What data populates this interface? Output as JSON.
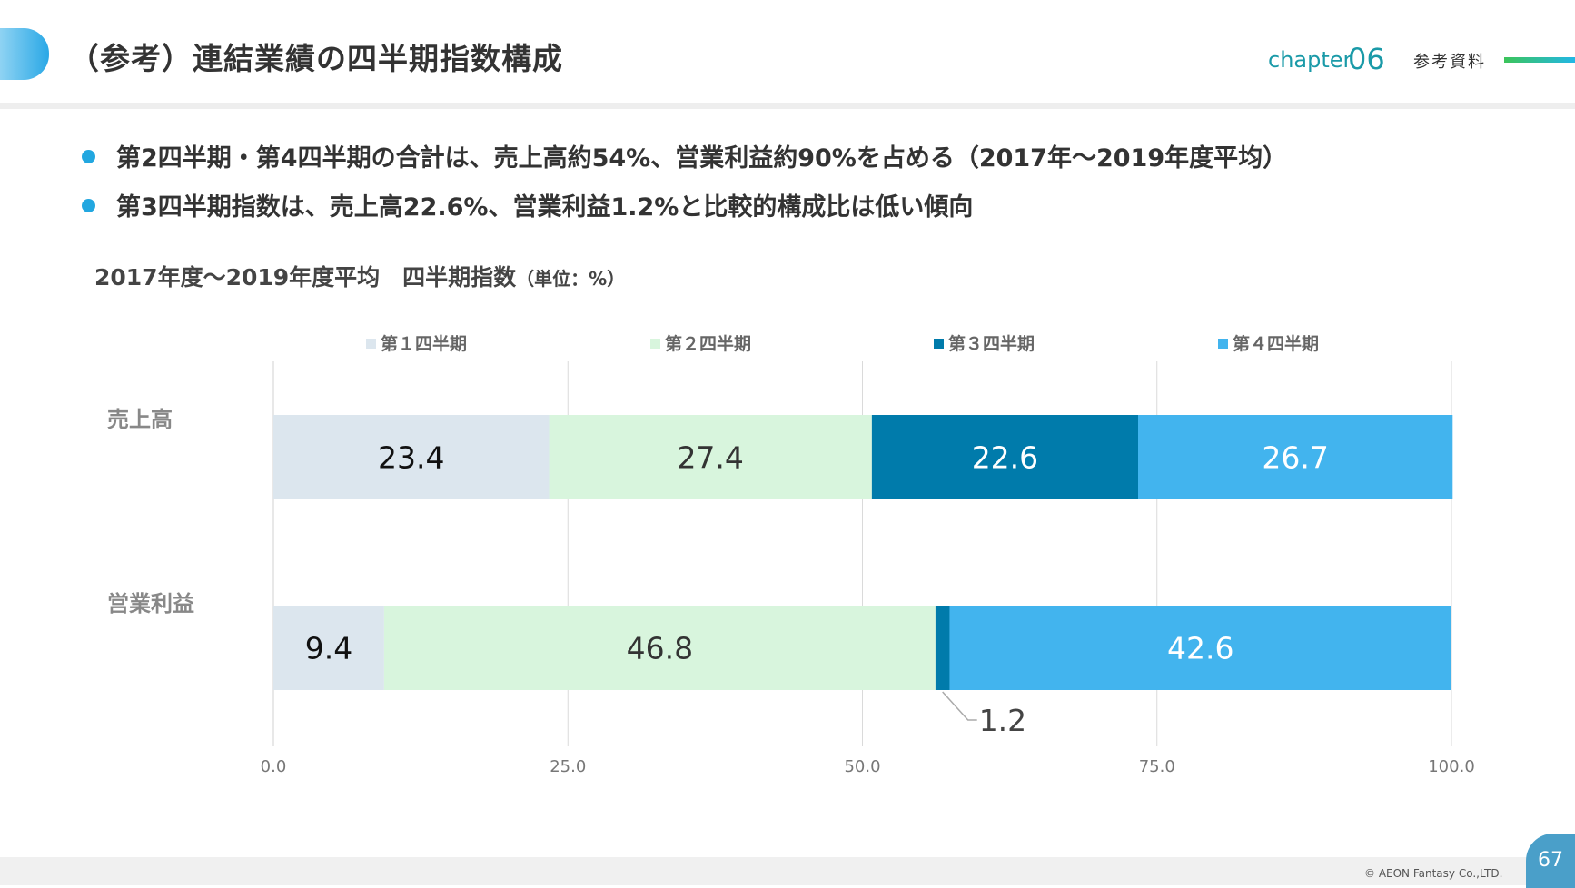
{
  "header": {
    "title": "（参考）連結業績の四半期指数構成",
    "chapter_label": "chapter",
    "chapter_number": "06",
    "section_label": "参考資料"
  },
  "bullets": [
    "第2四半期・第4四半期の合計は、売上高約54%、営業利益約90%を占める（2017年～2019年度平均）",
    "第3四半期指数は、売上高22.6%、営業利益1.2%と比較的構成比は低い傾向"
  ],
  "chart_heading": {
    "title": "2017年度～2019年度平均　四半期指数",
    "unit": "（単位：%）"
  },
  "chart_data": {
    "type": "bar",
    "orientation": "horizontal",
    "stacked": true,
    "categories": [
      "売上高",
      "営業利益"
    ],
    "series": [
      {
        "name": "第１四半期",
        "color": "#dce6ee",
        "label_color": "#111111",
        "values": [
          23.4,
          9.4
        ]
      },
      {
        "name": "第２四半期",
        "color": "#d8f5dd",
        "label_color": "#333333",
        "values": [
          27.4,
          46.8
        ]
      },
      {
        "name": "第３四半期",
        "color": "#007bab",
        "label_color": "#ffffff",
        "values": [
          22.6,
          1.2
        ]
      },
      {
        "name": "第４四半期",
        "color": "#42b4ee",
        "label_color": "#ffffff",
        "values": [
          26.7,
          42.6
        ]
      }
    ],
    "xlim": [
      0,
      100
    ],
    "xticks": [
      "0.0",
      "25.0",
      "50.0",
      "75.0",
      "100.0"
    ],
    "grid": true,
    "legend_position": "top"
  },
  "footer": {
    "copyright": "© AEON Fantasy Co.,LTD.",
    "page_number": "67"
  }
}
